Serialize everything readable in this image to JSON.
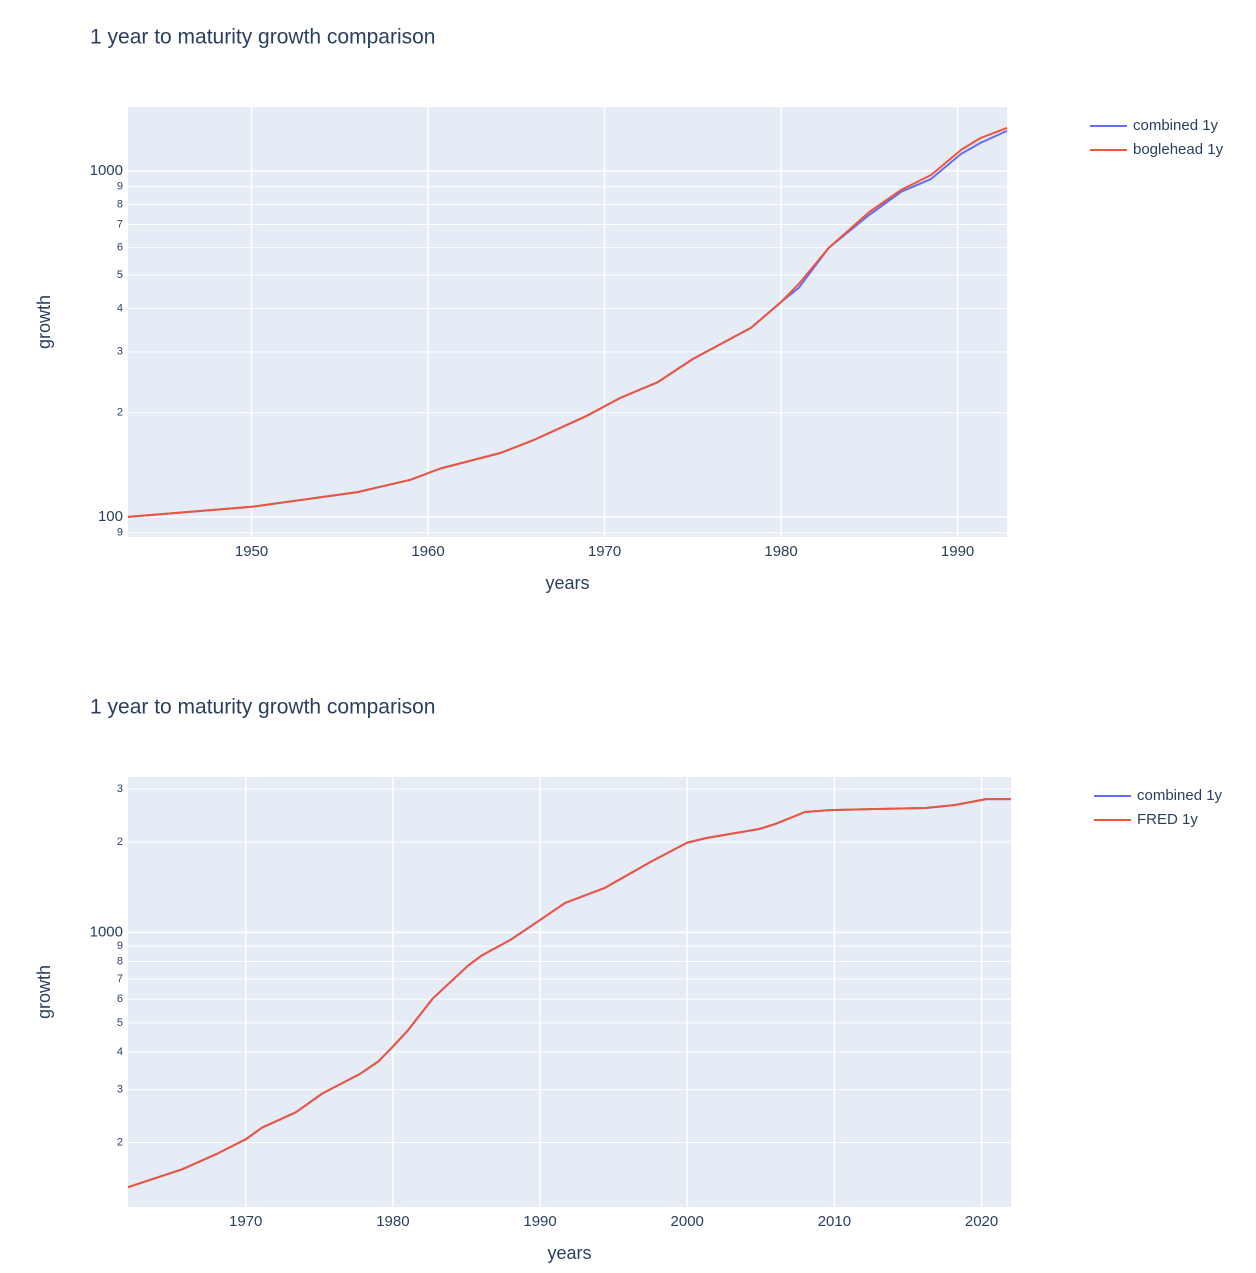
{
  "chart_data": [
    {
      "type": "line",
      "title": "1 year to maturity growth comparison",
      "x_label": "years",
      "y_label": "growth",
      "log_y": true,
      "grid": true,
      "legend": "right",
      "x": [
        1943,
        1950,
        1956,
        1959,
        1960.7,
        1964.1,
        1966,
        1969,
        1970.9,
        1973,
        1975,
        1978.3,
        1980,
        1981,
        1982.7,
        1985,
        1986.8,
        1988.5,
        1990.2,
        1991.3,
        1992.8
      ],
      "series": [
        {
          "name": "combined 1y",
          "color": "#636efa",
          "values": [
            100,
            107,
            118,
            128,
            138,
            153,
            167,
            196,
            221,
            245,
            286,
            352,
            418,
            459,
            599,
            746,
            870,
            948,
            1120,
            1205,
            1305
          ]
        },
        {
          "name": "boglehead 1y",
          "color": "#EF553B",
          "values": [
            100,
            107,
            118,
            128,
            138,
            153,
            167,
            196,
            221,
            245,
            286,
            352,
            418,
            471,
            599,
            761,
            881,
            973,
            1150,
            1245,
            1331
          ]
        }
      ],
      "xlim": [
        1943,
        1992.8
      ],
      "xticks": [
        1950,
        1960,
        1970,
        1980,
        1990
      ],
      "ylim": [
        87.5,
        1530
      ],
      "yticks": [
        {
          "value": 90,
          "label": "9"
        },
        100,
        {
          "value": 200,
          "label": "2"
        },
        {
          "value": 300,
          "label": "3"
        },
        {
          "value": 400,
          "label": "4"
        },
        {
          "value": 500,
          "label": "5"
        },
        {
          "value": 600,
          "label": "6"
        },
        {
          "value": 700,
          "label": "7"
        },
        {
          "value": 800,
          "label": "8"
        },
        {
          "value": 900,
          "label": "9"
        },
        1000
      ]
    },
    {
      "type": "line",
      "title": "1 year to maturity growth comparison",
      "x_label": "years",
      "y_label": "growth",
      "log_y": true,
      "grid": true,
      "legend": "right",
      "x": [
        1962,
        1965.7,
        1968.1,
        1970,
        1971.1,
        1973.4,
        1975.2,
        1977.8,
        1979,
        1980,
        1981,
        1982.7,
        1985.1,
        1986,
        1988,
        1990,
        1991.7,
        1994.4,
        1997.5,
        2000,
        2001.3,
        2004.9,
        2006,
        2008,
        2009.7,
        2012.8,
        2016.2,
        2018.2,
        2020.3,
        2022
      ],
      "series": [
        {
          "name": "combined 1y",
          "color": "#636efa",
          "values": [
            142,
            163,
            184,
            205,
            224,
            252,
            291,
            339,
            372,
            417,
            471,
            602,
            775,
            836,
            945,
            1101,
            1254,
            1407,
            1716,
            1990,
            2062,
            2209,
            2296,
            2516,
            2554,
            2574,
            2594,
            2654,
            2778,
            2778
          ]
        },
        {
          "name": "FRED 1y",
          "color": "#EF553B",
          "values": [
            142,
            163,
            184,
            205,
            224,
            252,
            291,
            339,
            372,
            417,
            471,
            602,
            775,
            836,
            945,
            1101,
            1254,
            1407,
            1716,
            1990,
            2062,
            2209,
            2296,
            2516,
            2554,
            2574,
            2594,
            2654,
            2778,
            2778
          ]
        }
      ],
      "xlim": [
        1962,
        2022
      ],
      "xticks": [
        1970,
        1980,
        1990,
        2000,
        2010,
        2020
      ],
      "ylim": [
        122,
        3290
      ],
      "yticks": [
        {
          "value": 200,
          "label": "2"
        },
        {
          "value": 300,
          "label": "3"
        },
        {
          "value": 400,
          "label": "4"
        },
        {
          "value": 500,
          "label": "5"
        },
        {
          "value": 600,
          "label": "6"
        },
        {
          "value": 700,
          "label": "7"
        },
        {
          "value": 800,
          "label": "8"
        },
        {
          "value": 900,
          "label": "9"
        },
        1000,
        {
          "value": 2000,
          "label": "2"
        },
        {
          "value": 3000,
          "label": "3"
        }
      ]
    }
  ]
}
